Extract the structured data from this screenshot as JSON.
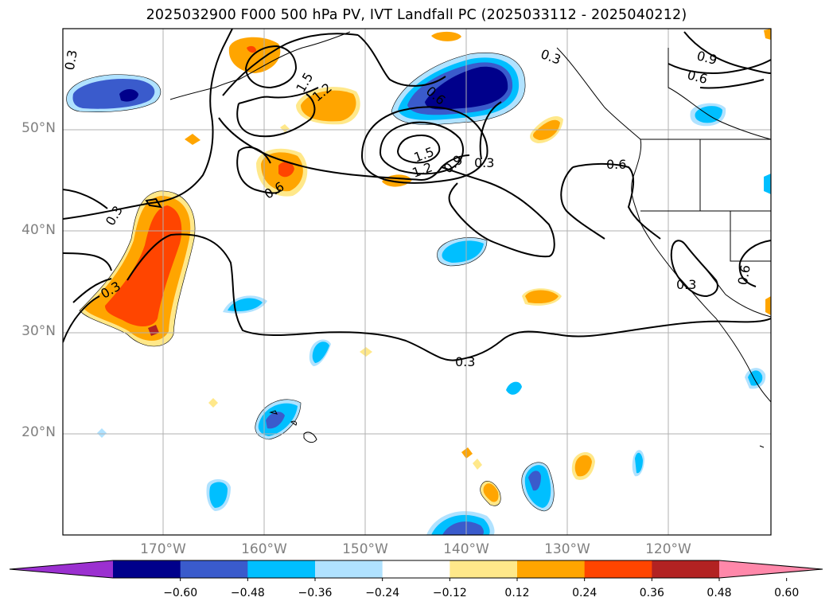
{
  "title": "2025032900 F000 500 hPa PV, IVT Landfall PC (2025033112 - 2025040212)",
  "map": {
    "lat_labels": [
      "50°N",
      "40°N",
      "30°N",
      "20°N"
    ],
    "lon_labels": [
      "170°W",
      "160°W",
      "150°W",
      "140°W",
      "130°W",
      "120°W"
    ],
    "contour_labels": [
      "0.3",
      "0.3",
      "0.3",
      "0.3",
      "0.3",
      "0.3",
      "0.3",
      "0.6",
      "0.6",
      "0.6",
      "0.6",
      "0.6",
      "0.9",
      "0.9",
      "1.2",
      "1.2",
      "1.5",
      "1.5"
    ],
    "extent": {
      "lon": [
        -180,
        -110
      ],
      "lat": [
        10,
        60
      ]
    }
  },
  "colorbar": {
    "ticks": [
      "−0.60",
      "−0.48",
      "−0.36",
      "−0.24",
      "−0.12",
      "0.12",
      "0.24",
      "0.36",
      "0.48",
      "0.60"
    ],
    "colors": [
      "#9b30d0",
      "#00008b",
      "#3a5bcc",
      "#00bfff",
      "#b0e2ff",
      "#ffffff",
      "#ffe88a",
      "#ffa500",
      "#ff4500",
      "#b22222",
      "#ff88aa"
    ]
  }
}
